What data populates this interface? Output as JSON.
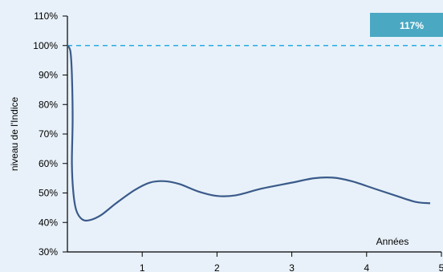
{
  "chart_data": {
    "type": "line",
    "title": "",
    "xlabel": "Années",
    "ylabel": "niveau de l'Indice",
    "xlim": [
      0,
      5
    ],
    "ylim": [
      30,
      110
    ],
    "x_ticks": [
      1,
      2,
      3,
      4,
      5
    ],
    "y_ticks": [
      30,
      40,
      50,
      60,
      70,
      80,
      90,
      100,
      110
    ],
    "y_tick_labels": [
      "30%",
      "40%",
      "50%",
      "60%",
      "70%",
      "80%",
      "90%",
      "100%",
      "110%"
    ],
    "x_tick_labels": [
      "1",
      "2",
      "3",
      "4",
      "5"
    ],
    "reference_line": {
      "y": 100,
      "style": "dashed",
      "color": "#29abe2"
    },
    "badge": {
      "text": "117%",
      "color": "#4aa8c3"
    },
    "series": [
      {
        "color": "#3a5a8a",
        "points": [
          [
            0.0,
            100
          ],
          [
            0.04,
            98
          ],
          [
            0.06,
            90
          ],
          [
            0.07,
            75
          ],
          [
            0.06,
            60
          ],
          [
            0.08,
            50
          ],
          [
            0.12,
            44
          ],
          [
            0.2,
            41
          ],
          [
            0.3,
            40.8
          ],
          [
            0.45,
            42.5
          ],
          [
            0.65,
            46.5
          ],
          [
            0.9,
            51
          ],
          [
            1.1,
            53.5
          ],
          [
            1.3,
            54
          ],
          [
            1.5,
            53
          ],
          [
            1.75,
            50.5
          ],
          [
            2.0,
            49
          ],
          [
            2.25,
            49.2
          ],
          [
            2.6,
            51.5
          ],
          [
            3.0,
            53.5
          ],
          [
            3.3,
            55
          ],
          [
            3.55,
            55.2
          ],
          [
            3.8,
            54
          ],
          [
            4.1,
            51.5
          ],
          [
            4.4,
            49
          ],
          [
            4.65,
            47
          ],
          [
            4.85,
            46.5
          ]
        ]
      }
    ],
    "grid": false,
    "legend": "none"
  }
}
